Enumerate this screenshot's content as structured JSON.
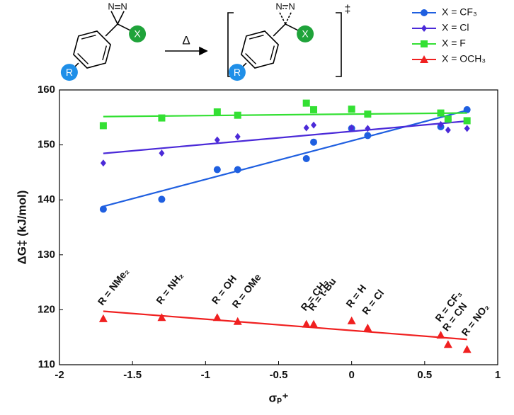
{
  "scheme": {
    "substituent": "R",
    "group": "X",
    "atom": "N",
    "condition": "Δ",
    "ts_mark": "‡"
  },
  "chart_data": {
    "type": "scatter",
    "x_label": "σₚ⁺",
    "y_label": "ΔG‡ (kJ/mol)",
    "x": [
      -1.7,
      -1.3,
      -0.92,
      -0.78,
      -0.31,
      -0.26,
      0,
      0.11,
      0.61,
      0.66,
      0.79
    ],
    "point_labels": [
      "R = NMe₂",
      "R = NH₂",
      "R = OH",
      "R = OMe",
      "R = CH₃",
      "R = t-Bu",
      "R = H",
      "R = Cl",
      "R = CF₃",
      "R = CN",
      "R = NO₂"
    ],
    "series": [
      {
        "name": "X = CF₃",
        "color": "#1f5fe0",
        "marker": "circle",
        "values": [
          138.3,
          140.1,
          145.5,
          145.5,
          147.5,
          150.5,
          153,
          151.7,
          153.3,
          154.6,
          156.4
        ]
      },
      {
        "name": "X = Cl",
        "color": "#4b2ad8",
        "marker": "diamond",
        "values": [
          146.7,
          148.5,
          150.9,
          151.5,
          153.1,
          153.6,
          153.1,
          153,
          153.7,
          152.7,
          153
        ]
      },
      {
        "name": "X = F",
        "color": "#33e033",
        "marker": "square",
        "values": [
          153.5,
          154.9,
          156,
          155.4,
          157.6,
          156.4,
          156.5,
          155.6,
          155.8,
          154.7,
          154.4
        ]
      },
      {
        "name": "X = OCH₃",
        "color": "#f02020",
        "marker": "triangle",
        "values": [
          118.4,
          118.6,
          118.6,
          117.9,
          117.4,
          117.4,
          118,
          116.7,
          115.4,
          113.7,
          112.8
        ]
      }
    ],
    "xlim": [
      -2,
      1
    ],
    "xticks": [
      -2,
      -1.5,
      -1,
      -0.5,
      0,
      0.5,
      1
    ],
    "ylim": [
      110,
      160
    ],
    "yticks": [
      110,
      120,
      130,
      140,
      150,
      160
    ],
    "trendline": true,
    "grid": false,
    "legend": "top-right"
  }
}
